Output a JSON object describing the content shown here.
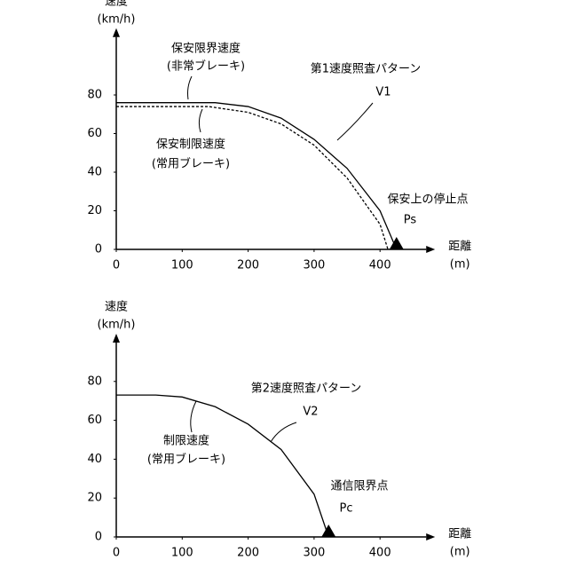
{
  "chart_data": [
    {
      "type": "line",
      "y_label": "速度",
      "y_unit": "(km/h)",
      "x_label": "距離",
      "x_unit": "(m)",
      "xlim": [
        0,
        470
      ],
      "ylim": [
        0,
        110
      ],
      "xticks": [
        0,
        100,
        200,
        300,
        400
      ],
      "yticks": [
        0,
        20,
        40,
        60,
        80
      ],
      "x": [
        0,
        150,
        200,
        250,
        300,
        350,
        400,
        425
      ],
      "series": [
        {
          "color": "#000000",
          "dash": false,
          "x": [
            0,
            150,
            200,
            250,
            300,
            350,
            400,
            425
          ],
          "values": [
            76,
            76,
            74,
            68,
            57,
            42,
            20,
            0
          ]
        },
        {
          "color": "#000000",
          "dash": true,
          "x": [
            0,
            140,
            200,
            250,
            300,
            350,
            400,
            412
          ],
          "values": [
            74,
            74,
            71,
            65,
            54,
            37,
            13,
            0
          ]
        }
      ],
      "annotations": [
        "保安限界速度",
        "(非常ブレーキ)",
        "保安制限速度",
        "(常用ブレーキ)",
        "第1速度照査パターン",
        "V1",
        "保安上の停止点"
      ],
      "stop_point": {
        "label": "Ps",
        "x": 425
      }
    },
    {
      "type": "line",
      "y_label": "速度",
      "y_unit": "(km/h)",
      "x_label": "距離",
      "x_unit": "(m)",
      "xlim": [
        0,
        470
      ],
      "ylim": [
        0,
        100
      ],
      "xticks": [
        0,
        100,
        200,
        300,
        400
      ],
      "yticks": [
        0,
        20,
        40,
        60,
        80
      ],
      "series": [
        {
          "color": "#000000",
          "dash": false,
          "x": [
            0,
            60,
            100,
            150,
            200,
            250,
            300,
            322
          ],
          "values": [
            73,
            73,
            72,
            67,
            58,
            45,
            22,
            0
          ]
        }
      ],
      "annotations": [
        "制限速度",
        "(常用ブレーキ)",
        "第2速度照査パターン",
        "V2",
        "通信限界点"
      ],
      "stop_point": {
        "label": "Pc",
        "x": 322
      }
    }
  ]
}
